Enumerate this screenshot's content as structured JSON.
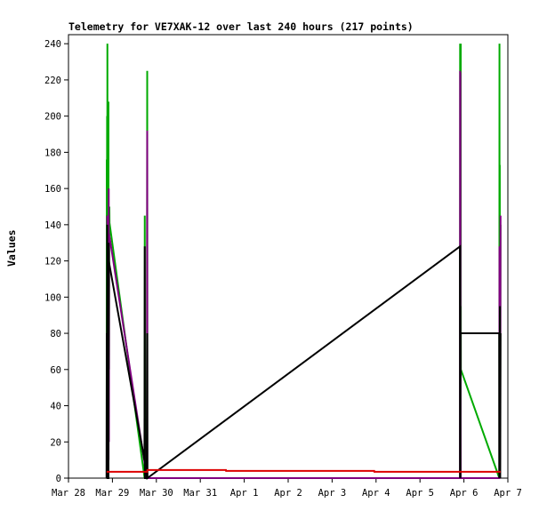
{
  "chart_data": {
    "type": "line",
    "title": "Telemetry for VE7XAK-12 over last 240 hours (217 points)",
    "ylabel": "Values",
    "xlabel": "",
    "ylim": [
      0,
      245
    ],
    "xlim": [
      "2024-03-28T00:00",
      "2024-04-07T00:00"
    ],
    "grid": false,
    "legend": "none",
    "y_ticks": [
      0,
      20,
      40,
      60,
      80,
      100,
      120,
      140,
      160,
      180,
      200,
      220,
      240
    ],
    "x_ticks": [
      {
        "label": "Mar 28",
        "t": "2024-03-28T00:00"
      },
      {
        "label": "Mar 29",
        "t": "2024-03-29T00:00"
      },
      {
        "label": "Mar 30",
        "t": "2024-03-30T00:00"
      },
      {
        "label": "Mar 31",
        "t": "2024-03-31T00:00"
      },
      {
        "label": "Apr 1",
        "t": "2024-04-01T00:00"
      },
      {
        "label": "Apr 2",
        "t": "2024-04-02T00:00"
      },
      {
        "label": "Apr 3",
        "t": "2024-04-03T00:00"
      },
      {
        "label": "Apr 4",
        "t": "2024-04-04T00:00"
      },
      {
        "label": "Apr 5",
        "t": "2024-04-05T00:00"
      },
      {
        "label": "Apr 6",
        "t": "2024-04-06T00:00"
      },
      {
        "label": "Apr 7",
        "t": "2024-04-07T00:00"
      }
    ],
    "series": [
      {
        "color": "#00aa00",
        "points": [
          [
            "2024-03-28T20:50",
            0
          ],
          [
            "2024-03-28T20:55",
            176
          ],
          [
            "2024-03-28T21:00",
            60
          ],
          [
            "2024-03-28T21:05",
            200
          ],
          [
            "2024-03-28T21:10",
            30
          ],
          [
            "2024-03-28T21:15",
            240
          ],
          [
            "2024-03-28T21:20",
            100
          ],
          [
            "2024-03-28T21:25",
            40
          ],
          [
            "2024-03-28T21:35",
            160
          ],
          [
            "2024-03-28T21:50",
            208
          ],
          [
            "2024-03-28T21:55",
            20
          ],
          [
            "2024-03-28T22:00",
            140
          ],
          [
            "2024-03-28T22:10",
            60
          ],
          [
            "2024-03-28T22:20",
            150
          ],
          [
            "2024-03-28T22:25",
            141
          ],
          [
            "2024-03-29T17:35",
            0
          ],
          [
            "2024-03-29T17:40",
            145
          ],
          [
            "2024-03-29T17:45",
            60
          ],
          [
            "2024-03-29T17:50",
            20
          ],
          [
            "2024-03-29T18:50",
            0
          ],
          [
            "2024-03-29T19:00",
            225
          ],
          [
            "2024-03-29T19:05",
            0
          ],
          [
            "2024-04-05T21:50",
            0
          ],
          [
            "2024-04-05T21:55",
            240
          ],
          [
            "2024-04-05T22:00",
            20
          ],
          [
            "2024-04-05T22:05",
            240
          ],
          [
            "2024-04-05T22:10",
            100
          ],
          [
            "2024-04-05T22:15",
            240
          ],
          [
            "2024-04-05T22:20",
            60
          ],
          [
            "2024-04-06T19:20",
            0
          ],
          [
            "2024-04-06T19:25",
            240
          ],
          [
            "2024-04-06T19:30",
            10
          ],
          [
            "2024-04-06T19:35",
            173
          ],
          [
            "2024-04-06T19:40",
            40
          ],
          [
            "2024-04-06T19:45",
            130
          ],
          [
            "2024-04-06T19:50",
            20
          ],
          [
            "2024-04-06T20:00",
            140
          ]
        ]
      },
      {
        "color": "#800080",
        "points": [
          [
            "2024-03-28T20:50",
            0
          ],
          [
            "2024-03-28T20:55",
            80
          ],
          [
            "2024-03-28T21:00",
            10
          ],
          [
            "2024-03-28T21:10",
            145
          ],
          [
            "2024-03-28T21:15",
            20
          ],
          [
            "2024-03-28T21:30",
            120
          ],
          [
            "2024-03-28T21:40",
            40
          ],
          [
            "2024-03-28T21:50",
            129
          ],
          [
            "2024-03-28T21:55",
            10
          ],
          [
            "2024-03-28T22:00",
            160
          ],
          [
            "2024-03-28T22:05",
            20
          ],
          [
            "2024-03-28T22:10",
            135
          ],
          [
            "2024-03-29T18:50",
            0
          ],
          [
            "2024-03-29T19:00",
            192
          ],
          [
            "2024-03-29T19:05",
            0
          ],
          [
            "2024-04-05T21:50",
            0
          ],
          [
            "2024-04-05T21:55",
            225
          ],
          [
            "2024-04-05T22:00",
            20
          ],
          [
            "2024-04-05T22:05",
            224
          ],
          [
            "2024-04-05T22:10",
            30
          ],
          [
            "2024-04-05T22:15",
            0
          ],
          [
            "2024-04-06T19:20",
            0
          ],
          [
            "2024-04-06T19:25",
            128
          ],
          [
            "2024-04-06T19:30",
            10
          ],
          [
            "2024-04-06T19:35",
            115
          ],
          [
            "2024-04-06T19:40",
            65
          ],
          [
            "2024-04-06T19:45",
            90
          ],
          [
            "2024-04-06T19:50",
            10
          ],
          [
            "2024-04-06T20:00",
            145
          ]
        ]
      },
      {
        "color": "#000000",
        "points": [
          [
            "2024-03-28T20:50",
            0
          ],
          [
            "2024-03-28T20:55",
            80
          ],
          [
            "2024-03-28T21:00",
            15
          ],
          [
            "2024-03-28T21:10",
            140
          ],
          [
            "2024-03-28T21:15",
            0
          ],
          [
            "2024-03-28T21:50",
            0
          ],
          [
            "2024-03-28T21:55",
            130
          ],
          [
            "2024-03-28T22:00",
            120
          ],
          [
            "2024-03-29T17:30",
            10
          ],
          [
            "2024-03-29T17:40",
            128
          ],
          [
            "2024-03-29T17:45",
            0
          ],
          [
            "2024-03-29T18:45",
            0
          ],
          [
            "2024-03-29T19:00",
            80
          ],
          [
            "2024-03-29T19:05",
            0
          ],
          [
            "2024-04-05T21:50",
            128
          ],
          [
            "2024-04-05T21:55",
            0
          ],
          [
            "2024-04-05T22:00",
            95
          ],
          [
            "2024-04-05T22:05",
            0
          ],
          [
            "2024-04-05T22:10",
            80
          ],
          [
            "2024-04-06T19:15",
            80
          ],
          [
            "2024-04-06T19:20",
            0
          ],
          [
            "2024-04-06T19:25",
            80
          ],
          [
            "2024-04-06T19:30",
            0
          ],
          [
            "2024-04-06T19:40",
            95
          ],
          [
            "2024-04-06T19:50",
            0
          ],
          [
            "2024-04-06T20:00",
            80
          ]
        ]
      },
      {
        "color": "#dd0000",
        "points": [
          [
            "2024-03-28T20:50",
            3.5
          ],
          [
            "2024-03-29T19:00",
            3.5
          ],
          [
            "2024-03-29T19:05",
            4.5
          ],
          [
            "2024-03-31T14:00",
            4.5
          ],
          [
            "2024-03-31T14:05",
            4
          ],
          [
            "2024-04-03T23:00",
            4
          ],
          [
            "2024-04-03T23:05",
            3.5
          ],
          [
            "2024-04-06T20:00",
            3.5
          ]
        ]
      }
    ]
  }
}
